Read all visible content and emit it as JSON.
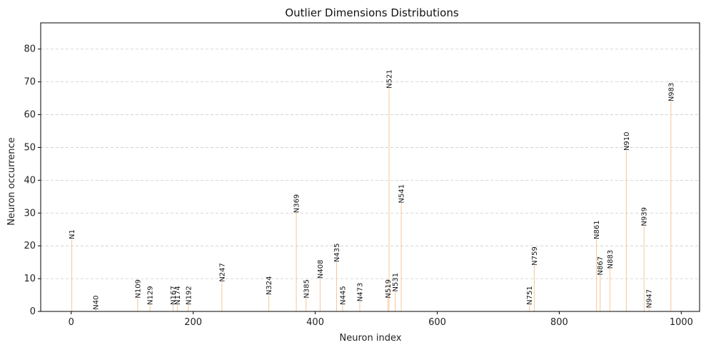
{
  "chart_data": {
    "type": "bar",
    "title": "Outlier Dimensions Distributions",
    "xlabel": "Neuron index",
    "ylabel": "Neuron occurrence",
    "xlim": [
      -50,
      1030
    ],
    "ylim": [
      0,
      88
    ],
    "xticks": [
      0,
      200,
      400,
      600,
      800,
      1000
    ],
    "yticks": [
      0,
      10,
      20,
      30,
      40,
      50,
      60,
      70,
      80
    ],
    "grid": "y-dashed",
    "bar_color": "#f5c89a",
    "points": [
      {
        "x": 1,
        "y": 22,
        "label": "N1"
      },
      {
        "x": 40,
        "y": 0.5,
        "label": "N40"
      },
      {
        "x": 109,
        "y": 4,
        "label": "N109"
      },
      {
        "x": 129,
        "y": 2,
        "label": "N129"
      },
      {
        "x": 167,
        "y": 2,
        "label": "N167"
      },
      {
        "x": 174,
        "y": 2,
        "label": "N174"
      },
      {
        "x": 192,
        "y": 2,
        "label": "N192"
      },
      {
        "x": 247,
        "y": 9,
        "label": "N247"
      },
      {
        "x": 324,
        "y": 5,
        "label": "N324"
      },
      {
        "x": 369,
        "y": 30,
        "label": "N369"
      },
      {
        "x": 385,
        "y": 4,
        "label": "N385"
      },
      {
        "x": 408,
        "y": 10,
        "label": "N408"
      },
      {
        "x": 435,
        "y": 15,
        "label": "N435"
      },
      {
        "x": 445,
        "y": 2,
        "label": "N445"
      },
      {
        "x": 473,
        "y": 3,
        "label": "N473"
      },
      {
        "x": 519,
        "y": 4,
        "label": "N519"
      },
      {
        "x": 521,
        "y": 68,
        "label": "N521"
      },
      {
        "x": 531,
        "y": 6,
        "label": "N531"
      },
      {
        "x": 541,
        "y": 33,
        "label": "N541"
      },
      {
        "x": 751,
        "y": 2,
        "label": "N751"
      },
      {
        "x": 759,
        "y": 14,
        "label": "N759"
      },
      {
        "x": 861,
        "y": 22,
        "label": "N861"
      },
      {
        "x": 867,
        "y": 11,
        "label": "N867"
      },
      {
        "x": 883,
        "y": 13,
        "label": "N883"
      },
      {
        "x": 910,
        "y": 49,
        "label": "N910"
      },
      {
        "x": 939,
        "y": 26,
        "label": "N939"
      },
      {
        "x": 947,
        "y": 1,
        "label": "N947"
      },
      {
        "x": 983,
        "y": 64,
        "label": "N983"
      }
    ]
  }
}
